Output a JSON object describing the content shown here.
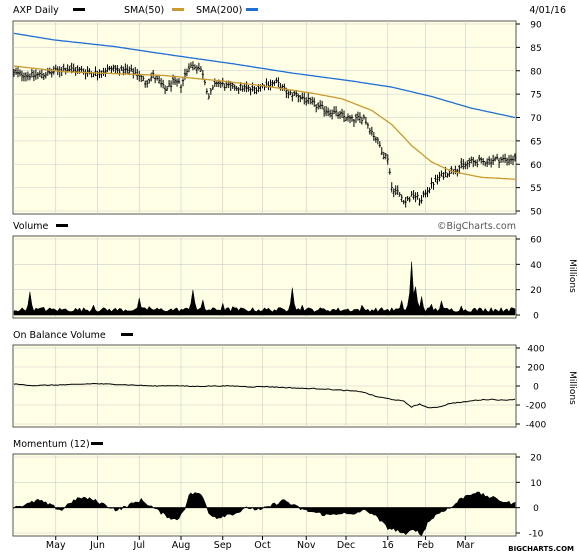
{
  "header": {
    "symbol_label": "AXP Daily",
    "sma50_label": "SMA(50)",
    "sma200_label": "SMA(200)",
    "date": "4/01/16"
  },
  "watermark": "©BigCharts.com",
  "footer": "BIGCHARTS.COM",
  "colors": {
    "background": "#ffffe5",
    "price": "#000000",
    "sma50": "#c99a2e",
    "sma200": "#1f6fd6",
    "grid": "#cccccc",
    "frame": "#555555"
  },
  "x_axis": {
    "labels": [
      {
        "label": "May",
        "index": 21
      },
      {
        "label": "Jun",
        "index": 42
      },
      {
        "label": "Jul",
        "index": 63
      },
      {
        "label": "Aug",
        "index": 84
      },
      {
        "label": "Sep",
        "index": 105
      },
      {
        "label": "Oct",
        "index": 125
      },
      {
        "label": "Nov",
        "index": 147
      },
      {
        "label": "Dec",
        "index": 167
      },
      {
        "label": "16",
        "index": 188
      },
      {
        "label": "Feb",
        "index": 207
      },
      {
        "label": "Mar",
        "index": 227
      }
    ],
    "num_days": 253
  },
  "chart_data": [
    {
      "type": "line",
      "title": "AXP Daily",
      "ylim": [
        50,
        90
      ],
      "yticks": [
        50,
        55,
        60,
        65,
        70,
        75,
        80,
        85,
        90
      ],
      "grid": true,
      "series": [
        {
          "name": "AXP Daily",
          "style": "ohlc bars",
          "anchors": [
            [
              0,
              79.5
            ],
            [
              10,
              79
            ],
            [
              18,
              79.5
            ],
            [
              26,
              80.5
            ],
            [
              34,
              80
            ],
            [
              42,
              79.5
            ],
            [
              50,
              80.5
            ],
            [
              56,
              80
            ],
            [
              62,
              79.5
            ],
            [
              66,
              77.5
            ],
            [
              70,
              79
            ],
            [
              76,
              76
            ],
            [
              80,
              77.5
            ],
            [
              84,
              77
            ],
            [
              88,
              81
            ],
            [
              92,
              81
            ],
            [
              95,
              79.5
            ],
            [
              98,
              74.5
            ],
            [
              102,
              77.5
            ],
            [
              108,
              76.5
            ],
            [
              114,
              76.5
            ],
            [
              120,
              76
            ],
            [
              126,
              77
            ],
            [
              132,
              77.5
            ],
            [
              138,
              75
            ],
            [
              142,
              75
            ],
            [
              146,
              74
            ],
            [
              152,
              72.5
            ],
            [
              158,
              71.5
            ],
            [
              164,
              70.5
            ],
            [
              170,
              69.5
            ],
            [
              176,
              70
            ],
            [
              180,
              67
            ],
            [
              184,
              64
            ],
            [
              186,
              62
            ],
            [
              188,
              61.5
            ],
            [
              190,
              55
            ],
            [
              193,
              54
            ],
            [
              197,
              52
            ],
            [
              201,
              53.5
            ],
            [
              205,
              52
            ],
            [
              207,
              54
            ],
            [
              211,
              56
            ],
            [
              215,
              57.5
            ],
            [
              219,
              58.5
            ],
            [
              225,
              59.5
            ],
            [
              230,
              60.5
            ],
            [
              236,
              60.5
            ],
            [
              242,
              61
            ],
            [
              248,
              61
            ],
            [
              252,
              61.2
            ]
          ]
        },
        {
          "name": "SMA(50)",
          "anchors": [
            [
              0,
              81
            ],
            [
              25,
              79.8
            ],
            [
              50,
              79.4
            ],
            [
              75,
              79
            ],
            [
              100,
              78
            ],
            [
              125,
              76.8
            ],
            [
              150,
              75.2
            ],
            [
              165,
              74
            ],
            [
              180,
              71.5
            ],
            [
              190,
              68.5
            ],
            [
              200,
              64
            ],
            [
              210,
              60.5
            ],
            [
              220,
              58.5
            ],
            [
              235,
              57.2
            ],
            [
              252,
              56.8
            ]
          ]
        },
        {
          "name": "SMA(200)",
          "anchors": [
            [
              0,
              88
            ],
            [
              20,
              86.6
            ],
            [
              50,
              85.2
            ],
            [
              80,
              83.3
            ],
            [
              110,
              81.5
            ],
            [
              140,
              79.5
            ],
            [
              170,
              77.8
            ],
            [
              190,
              76.5
            ],
            [
              210,
              74.5
            ],
            [
              230,
              72
            ],
            [
              252,
              70
            ]
          ]
        }
      ]
    },
    {
      "type": "area",
      "title": "Volume",
      "ylabel": "Millions",
      "ylim": [
        0,
        60
      ],
      "yticks": [
        0,
        20,
        40,
        60
      ],
      "base_level": 4,
      "spikes": [
        [
          8,
          20
        ],
        [
          15,
          7
        ],
        [
          40,
          8
        ],
        [
          63,
          14
        ],
        [
          68,
          7
        ],
        [
          90,
          23
        ],
        [
          95,
          12
        ],
        [
          105,
          10
        ],
        [
          110,
          7
        ],
        [
          140,
          23
        ],
        [
          145,
          9
        ],
        [
          175,
          8
        ],
        [
          195,
          12
        ],
        [
          199,
          19
        ],
        [
          200,
          43
        ],
        [
          202,
          26
        ],
        [
          205,
          15
        ],
        [
          210,
          10
        ],
        [
          215,
          12
        ],
        [
          225,
          8
        ],
        [
          240,
          6
        ],
        [
          248,
          5
        ]
      ]
    },
    {
      "type": "line",
      "title": "On Balance Volume",
      "ylabel": "Millions",
      "ylim": [
        -400,
        400
      ],
      "yticks": [
        -400,
        -200,
        0,
        200,
        400
      ],
      "anchors": [
        [
          0,
          20
        ],
        [
          10,
          5
        ],
        [
          20,
          10
        ],
        [
          30,
          15
        ],
        [
          40,
          25
        ],
        [
          50,
          18
        ],
        [
          60,
          10
        ],
        [
          70,
          0
        ],
        [
          80,
          5
        ],
        [
          90,
          -5
        ],
        [
          100,
          0
        ],
        [
          110,
          0
        ],
        [
          120,
          -10
        ],
        [
          125,
          -5
        ],
        [
          135,
          -15
        ],
        [
          145,
          -25
        ],
        [
          155,
          -30
        ],
        [
          165,
          -45
        ],
        [
          175,
          -60
        ],
        [
          182,
          -110
        ],
        [
          190,
          -140
        ],
        [
          196,
          -160
        ],
        [
          200,
          -220
        ],
        [
          204,
          -190
        ],
        [
          208,
          -230
        ],
        [
          214,
          -220
        ],
        [
          220,
          -180
        ],
        [
          226,
          -170
        ],
        [
          232,
          -150
        ],
        [
          240,
          -140
        ],
        [
          246,
          -150
        ],
        [
          252,
          -140
        ]
      ]
    },
    {
      "type": "area",
      "title": "Momentum (12)",
      "ylim": [
        -10,
        20
      ],
      "yticks": [
        -10,
        0,
        10,
        20
      ],
      "anchors": [
        [
          0,
          0.5
        ],
        [
          6,
          1
        ],
        [
          12,
          3
        ],
        [
          18,
          1
        ],
        [
          24,
          -1
        ],
        [
          28,
          2
        ],
        [
          34,
          4
        ],
        [
          40,
          3
        ],
        [
          46,
          1
        ],
        [
          52,
          -1
        ],
        [
          58,
          1
        ],
        [
          64,
          3
        ],
        [
          70,
          0
        ],
        [
          76,
          -3
        ],
        [
          82,
          -5
        ],
        [
          86,
          0
        ],
        [
          88,
          5
        ],
        [
          92,
          6
        ],
        [
          95,
          4
        ],
        [
          98,
          -2
        ],
        [
          102,
          -4
        ],
        [
          106,
          -3
        ],
        [
          112,
          -2
        ],
        [
          118,
          0
        ],
        [
          124,
          -1
        ],
        [
          130,
          1
        ],
        [
          136,
          3
        ],
        [
          140,
          1
        ],
        [
          146,
          -1
        ],
        [
          152,
          -2
        ],
        [
          158,
          -3
        ],
        [
          164,
          -2
        ],
        [
          170,
          -3
        ],
        [
          175,
          -1
        ],
        [
          180,
          -2
        ],
        [
          184,
          -5
        ],
        [
          188,
          -8
        ],
        [
          193,
          -9
        ],
        [
          197,
          -11
        ],
        [
          201,
          -8
        ],
        [
          205,
          -11
        ],
        [
          208,
          -6
        ],
        [
          212,
          -3
        ],
        [
          216,
          -1
        ],
        [
          220,
          0
        ],
        [
          224,
          3
        ],
        [
          228,
          5
        ],
        [
          232,
          6
        ],
        [
          236,
          5
        ],
        [
          240,
          4
        ],
        [
          244,
          3
        ],
        [
          248,
          2
        ],
        [
          252,
          1.5
        ]
      ]
    }
  ],
  "panels": {
    "price": {
      "title": "AXP Daily",
      "ylabel": ""
    },
    "volume": {
      "title": "Volume",
      "ylabel": "Millions"
    },
    "obv": {
      "title": "On Balance Volume",
      "ylabel": "Millions"
    },
    "momentum": {
      "title": "Momentum (12)",
      "ylabel": ""
    }
  }
}
